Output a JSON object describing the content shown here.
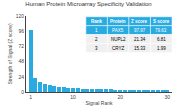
{
  "chart_data": {
    "type": "bar",
    "title": "Human Protein Microarray Specificity Validation",
    "xlabel": "Signal Rank",
    "ylabel": "Strength of Signal (Z score)",
    "x": [
      1,
      2,
      3,
      4,
      5,
      6,
      7,
      8,
      9,
      10,
      11,
      12,
      13,
      14,
      15,
      16,
      17,
      18,
      19,
      20,
      21,
      22,
      23,
      24,
      25,
      26,
      27,
      28,
      29,
      30
    ],
    "values": [
      97.97,
      21.34,
      15.33,
      12.0,
      10.5,
      9.2,
      8.1,
      7.3,
      6.8,
      6.2,
      5.8,
      5.4,
      5.1,
      4.9,
      4.6,
      4.4,
      4.2,
      4.0,
      3.8,
      3.6,
      3.5,
      3.3,
      3.2,
      3.1,
      3.0,
      2.9,
      2.8,
      2.7,
      2.6,
      2.5
    ],
    "color": "#29abe2",
    "xlim": [
      0,
      31
    ],
    "xticks": [
      1,
      10,
      20,
      30
    ],
    "ylim": [
      0,
      120
    ],
    "yticks": [
      0,
      24,
      48,
      72,
      96,
      120
    ],
    "grid": false,
    "table": {
      "columns": [
        "Rank",
        "Protein",
        "Z score",
        "S score"
      ],
      "rows": [
        [
          "1",
          "PAX5",
          "97.97",
          "79.63"
        ],
        [
          "2",
          "NUPL2",
          "21.34",
          "6.81"
        ],
        [
          "3",
          "CRYZ",
          "15.33",
          "1.99"
        ]
      ],
      "fill_colors": [
        "#29abe2",
        "#29abe2",
        "#f0f0f0",
        "#f0f0f0"
      ],
      "text_colors": [
        "#ffffff",
        "#ffffff",
        "#000000",
        "#000000"
      ]
    }
  }
}
